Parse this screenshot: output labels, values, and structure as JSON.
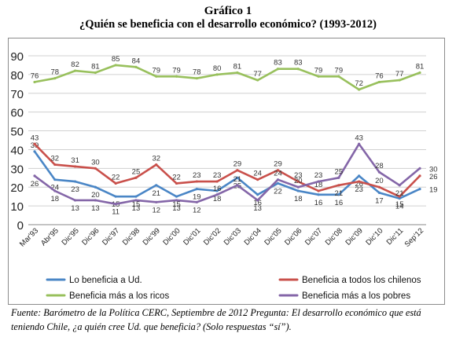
{
  "header": {
    "title": "Gráfico 1",
    "subtitle": "¿Quién se beneficia con el desarrollo económico? (1993-2012)"
  },
  "source_note": "Fuente: Barómetro de la Política CERC, Septiembre de 2012 Pregunta: El desarrollo económico que está teniendo Chile, ¿a quién cree Ud. que beneficia? (Solo respuestas “sí”).",
  "chart_data": {
    "type": "line",
    "title": "¿Quién se beneficia con el desarrollo económico? (1993-2012)",
    "categories": [
      "Mar'93",
      "Abr'95",
      "Dic'95",
      "Dic'96",
      "Dic'97",
      "Dic'98",
      "Dic'99",
      "Dic'00",
      "Dic'01",
      "Dic'02",
      "Dic'03",
      "Dic'04",
      "Dic'05",
      "Dic'06",
      "Dic'07",
      "Dic'08",
      "Dic'09",
      "Dic'10",
      "Dic'11",
      "Sep'12"
    ],
    "ylim": [
      0,
      90
    ],
    "yticks": [
      0,
      10,
      20,
      30,
      40,
      50,
      60,
      70,
      80,
      90
    ],
    "grid": true,
    "legend_position": "bottom",
    "series": [
      {
        "name": "Lo beneficia a Ud.",
        "color": "#4a86c6",
        "values": [
          39,
          24,
          23,
          20,
          15,
          15,
          21,
          15,
          19,
          18,
          25,
          16,
          22,
          18,
          16,
          16,
          26,
          17,
          14,
          19
        ]
      },
      {
        "name": "Beneficia a todos los chilenos",
        "color": "#c9504b",
        "values": [
          43,
          32,
          31,
          30,
          22,
          25,
          32,
          22,
          23,
          23,
          29,
          24,
          29,
          23,
          18,
          21,
          23,
          20,
          15,
          26
        ]
      },
      {
        "name": "Beneficia más a los ricos",
        "color": "#98c05c",
        "values": [
          76,
          78,
          82,
          81,
          85,
          84,
          79,
          79,
          78,
          80,
          81,
          77,
          83,
          83,
          79,
          79,
          72,
          76,
          77,
          81
        ]
      },
      {
        "name": "Beneficia más a los pobres",
        "color": "#8466a8",
        "values": [
          26,
          18,
          13,
          13,
          11,
          13,
          12,
          13,
          12,
          16,
          21,
          13,
          24,
          20,
          23,
          25,
          43,
          28,
          21,
          30
        ]
      }
    ]
  }
}
